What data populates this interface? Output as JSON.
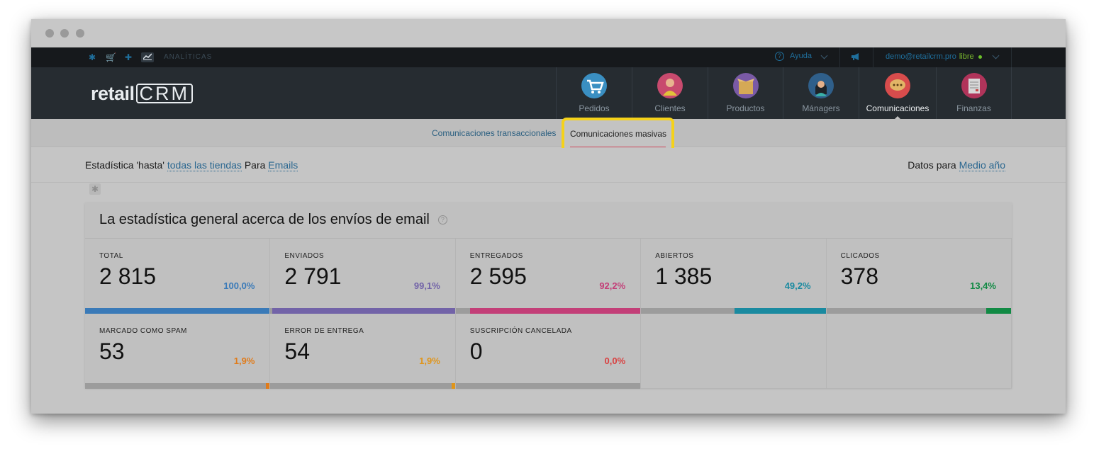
{
  "topbar": {
    "section_label": "ANALÍTICAS",
    "help_label": "Ayuda",
    "user_email": "demo@retailcrm.pro",
    "user_plan": "libre"
  },
  "header": {
    "logo_text": "retail",
    "logo_crm": "CRM",
    "nav": [
      {
        "label": "Pedidos",
        "icon": "cart-icon",
        "color": "#3a8fc2"
      },
      {
        "label": "Clientes",
        "icon": "client-avatar-icon",
        "color": "#c84a6e"
      },
      {
        "label": "Productos",
        "icon": "box-icon",
        "color": "#7a5aa6"
      },
      {
        "label": "Mánagers",
        "icon": "manager-avatar-icon",
        "color": "#2f5f8a"
      },
      {
        "label": "Comunicaciones",
        "icon": "chat-bubble-icon",
        "color": "#d84c4c"
      },
      {
        "label": "Finanzas",
        "icon": "ledger-icon",
        "color": "#b0345a"
      }
    ],
    "active_nav": "Comunicaciones"
  },
  "subnav": {
    "transactional": "Comunicaciones transaccionales",
    "bulk": "Comunicaciones masivas"
  },
  "filters": {
    "prefix": "Estadística 'hasta'",
    "stores_link": "todas las tiendas",
    "middle": "Para",
    "channel_link": "Emails",
    "period_prefix": "Datos para",
    "period_link": "Medio año"
  },
  "panel": {
    "title": "La estadística general acerca de los envíos de email",
    "info_glyph": "?"
  },
  "stats_row1": [
    {
      "caption": "TOTAL",
      "value": "2 815",
      "percent": "100,0%",
      "fraction": 1.0,
      "color": "#3a7ab8"
    },
    {
      "caption": "ENVIADOS",
      "value": "2 791",
      "percent": "99,1%",
      "fraction": 0.991,
      "color": "#7263a8"
    },
    {
      "caption": "ENTREGADOS",
      "value": "2 595",
      "percent": "92,2%",
      "fraction": 0.922,
      "color": "#c33f78"
    },
    {
      "caption": "ABIERTOS",
      "value": "1 385",
      "percent": "49,2%",
      "fraction": 0.492,
      "color": "#1a8aa0"
    },
    {
      "caption": "CLICADOS",
      "value": "378",
      "percent": "13,4%",
      "fraction": 0.134,
      "color": "#118a44"
    }
  ],
  "stats_row2": [
    {
      "caption": "MARCADO COMO SPAM",
      "value": "53",
      "percent": "1,9%",
      "fraction": 0.019,
      "color": "#e07b1a"
    },
    {
      "caption": "ERROR DE ENTREGA",
      "value": "54",
      "percent": "1,9%",
      "fraction": 0.019,
      "color": "#e0951a"
    },
    {
      "caption": "SUSCRIPCIÓN CANCELADA",
      "value": "0",
      "percent": "0,0%",
      "fraction": 0.0,
      "color": "#d94040"
    }
  ]
}
